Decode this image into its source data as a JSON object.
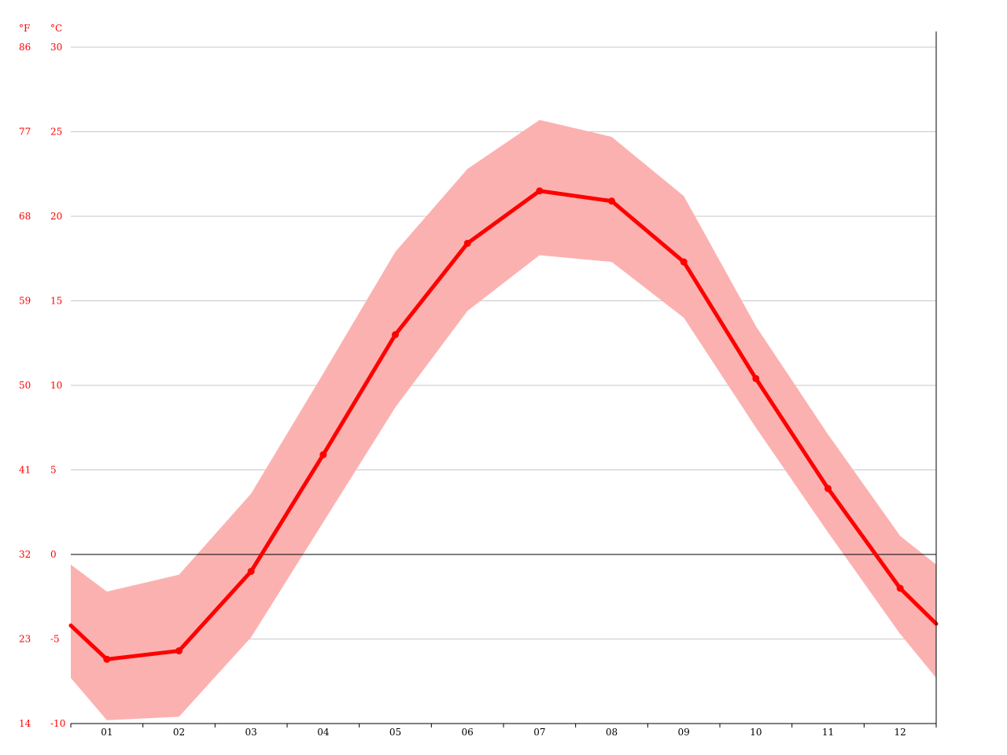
{
  "chart_data": {
    "type": "line",
    "title": "",
    "xlabel": "",
    "ylabel": "",
    "unit_f": "°F",
    "unit_c": "°C",
    "categories": [
      "01",
      "02",
      "03",
      "04",
      "05",
      "06",
      "07",
      "08",
      "09",
      "10",
      "11",
      "12"
    ],
    "y_ticks_c": [
      -10,
      -5,
      0,
      5,
      10,
      15,
      20,
      25,
      30
    ],
    "y_ticks_f": [
      14,
      23,
      32,
      41,
      50,
      59,
      68,
      77,
      86
    ],
    "ylim": [
      -10,
      30
    ],
    "series": [
      {
        "values": [
          -6.2,
          -5.7,
          -1.0,
          5.9,
          13.0,
          18.4,
          21.5,
          20.9,
          17.3,
          10.4,
          3.9,
          -2.0
        ]
      }
    ],
    "range_band": {
      "max": [
        -2.2,
        -1.2,
        3.6,
        10.7,
        17.9,
        22.8,
        25.7,
        24.7,
        21.2,
        13.5,
        7.1,
        1.1
      ],
      "min": [
        -9.8,
        -9.6,
        -4.9,
        1.9,
        8.7,
        14.4,
        17.7,
        17.3,
        14.0,
        7.5,
        1.3,
        -4.7
      ]
    },
    "edge_values": {
      "line_left": -4.2,
      "line_right": -4.1,
      "max_left": -0.6,
      "max_right": -0.6,
      "min_left": -7.3,
      "min_right": -7.3
    },
    "colors": {
      "line": "#ff0000",
      "band": "#fcb1b1",
      "label": "#ff0000",
      "grid": "#c8c8c8",
      "zero_line": "#000000"
    },
    "grid": true,
    "legend": "none"
  }
}
